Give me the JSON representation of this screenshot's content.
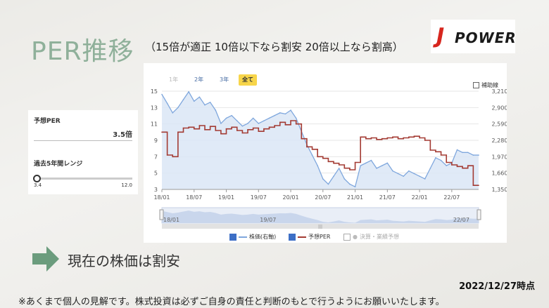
{
  "header": {
    "title": "PER推移",
    "subtitle": "（15倍が適正 10倍以下なら割安 20倍以上なら割高）",
    "logo_text_j": "J",
    "logo_text_power": "POWER"
  },
  "panel": {
    "forecast_per_label": "予想PER",
    "forecast_per_value": "3.5倍",
    "range_label": "過去5年間レンジ",
    "range_min": "3.4",
    "range_max": "12.0",
    "range_position": 0.01
  },
  "controls": {
    "btn_1y": "1年",
    "btn_2y": "2年",
    "btn_3y": "3年",
    "btn_all": "全て",
    "aux_lines": "補助線"
  },
  "legend": {
    "price": "株価(右軸)",
    "per": "予想PER",
    "earnings": "決算・業績予想"
  },
  "colors": {
    "per_line": "#a33b33",
    "price_line": "#7fa7dd",
    "price_fill": "#dbe6f6",
    "accent_title": "#8fb09a",
    "arrow": "#6b9c7d"
  },
  "verdict": "現在の株価は割安",
  "as_of": "2022/12/27時点",
  "disclaimer": "※あくまで個人の見解です。株式投資は必ずご自身の責任と判断のもとで行うようにお願いいたします。",
  "chart_data": {
    "type": "line",
    "x_tick_labels": [
      "18/01",
      "18/07",
      "19/01",
      "19/07",
      "20/01",
      "20/07",
      "21/01",
      "21/07",
      "22/01",
      "22/07"
    ],
    "navigator_tick_labels": [
      "18/01",
      "19/07",
      "22/07"
    ],
    "y_left_ticks": [
      "15",
      "13",
      "11",
      "9",
      "7",
      "5",
      "3"
    ],
    "y_right_ticks": [
      "3,210",
      "2,900",
      "2,590",
      "2,280",
      "1,970",
      "1,660",
      "1,350"
    ],
    "ylim_left": [
      3,
      15
    ],
    "ylim_right": [
      1350,
      3210
    ],
    "x": [
      "18/01",
      "18/02",
      "18/03",
      "18/04",
      "18/05",
      "18/06",
      "18/07",
      "18/08",
      "18/09",
      "18/10",
      "18/11",
      "18/12",
      "19/01",
      "19/02",
      "19/03",
      "19/04",
      "19/05",
      "19/06",
      "19/07",
      "19/08",
      "19/09",
      "19/10",
      "19/11",
      "19/12",
      "20/01",
      "20/02",
      "20/03",
      "20/04",
      "20/05",
      "20/06",
      "20/07",
      "20/08",
      "20/09",
      "20/10",
      "20/11",
      "20/12",
      "21/01",
      "21/02",
      "21/03",
      "21/04",
      "21/05",
      "21/06",
      "21/07",
      "21/08",
      "21/09",
      "21/10",
      "21/11",
      "21/12",
      "22/01",
      "22/02",
      "22/03",
      "22/04",
      "22/05",
      "22/06",
      "22/07",
      "22/08",
      "22/09",
      "22/10",
      "22/11",
      "22/12"
    ],
    "series": [
      {
        "name": "予想PER",
        "axis": "left",
        "values": [
          10.0,
          7.2,
          7.0,
          10.0,
          10.5,
          10.6,
          10.4,
          10.8,
          10.3,
          10.7,
          10.2,
          9.8,
          10.4,
          10.6,
          10.2,
          9.9,
          10.3,
          10.5,
          10.1,
          10.4,
          10.6,
          10.8,
          11.2,
          10.9,
          11.4,
          11.0,
          9.2,
          8.2,
          7.9,
          7.0,
          6.8,
          6.4,
          6.2,
          6.0,
          5.6,
          5.4,
          6.3,
          9.4,
          9.2,
          9.3,
          9.1,
          9.2,
          9.3,
          9.4,
          9.2,
          9.3,
          9.4,
          9.5,
          9.3,
          9.0,
          7.8,
          7.6,
          7.2,
          6.3,
          6.0,
          5.8,
          5.6,
          5.9,
          3.5,
          3.5
        ]
      },
      {
        "name": "株価(右軸)",
        "axis": "right",
        "values": [
          3150,
          2980,
          2800,
          2900,
          3050,
          3200,
          3020,
          3100,
          2950,
          3000,
          2850,
          2600,
          2700,
          2750,
          2650,
          2550,
          2600,
          2700,
          2600,
          2650,
          2700,
          2750,
          2800,
          2780,
          2850,
          2700,
          2450,
          2200,
          2000,
          1800,
          1550,
          1450,
          1600,
          1750,
          1550,
          1450,
          1400,
          1800,
          1850,
          1900,
          1750,
          1800,
          1850,
          1700,
          1650,
          1600,
          1700,
          1650,
          1600,
          1550,
          1750,
          1950,
          1900,
          1800,
          1850,
          2100,
          2050,
          2050,
          2000,
          2000
        ]
      }
    ],
    "grid": true,
    "legend_placement": "bottom"
  }
}
